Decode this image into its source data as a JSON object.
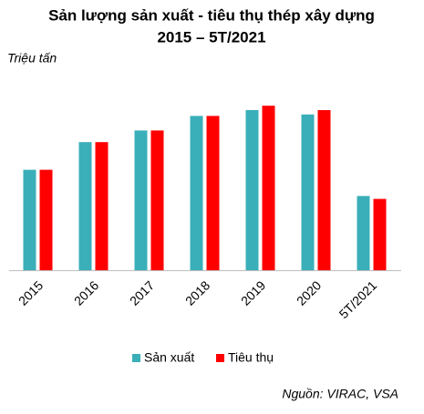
{
  "chart_data": {
    "type": "bar",
    "title": [
      "Sản lượng sản xuất - tiêu thụ thép xây dựng",
      "2015 – 5T/2021"
    ],
    "y_label": "Triệu tấn",
    "categories": [
      "2015",
      "2016",
      "2017",
      "2018",
      "2019",
      "2020",
      "5T/2021"
    ],
    "series": [
      {
        "name": "Sản xuất",
        "color": "#3aafb9",
        "values": [
          6.9,
          8.8,
          9.6,
          10.6,
          11.0,
          10.7,
          5.1
        ]
      },
      {
        "name": "Tiêu thụ",
        "color": "#ff0000",
        "values": [
          6.9,
          8.8,
          9.6,
          10.6,
          11.3,
          11.0,
          4.9
        ]
      }
    ],
    "ylim": [
      0,
      12.5
    ],
    "legend": "bottom",
    "source": "Nguồn: VIRAC, VSA"
  }
}
